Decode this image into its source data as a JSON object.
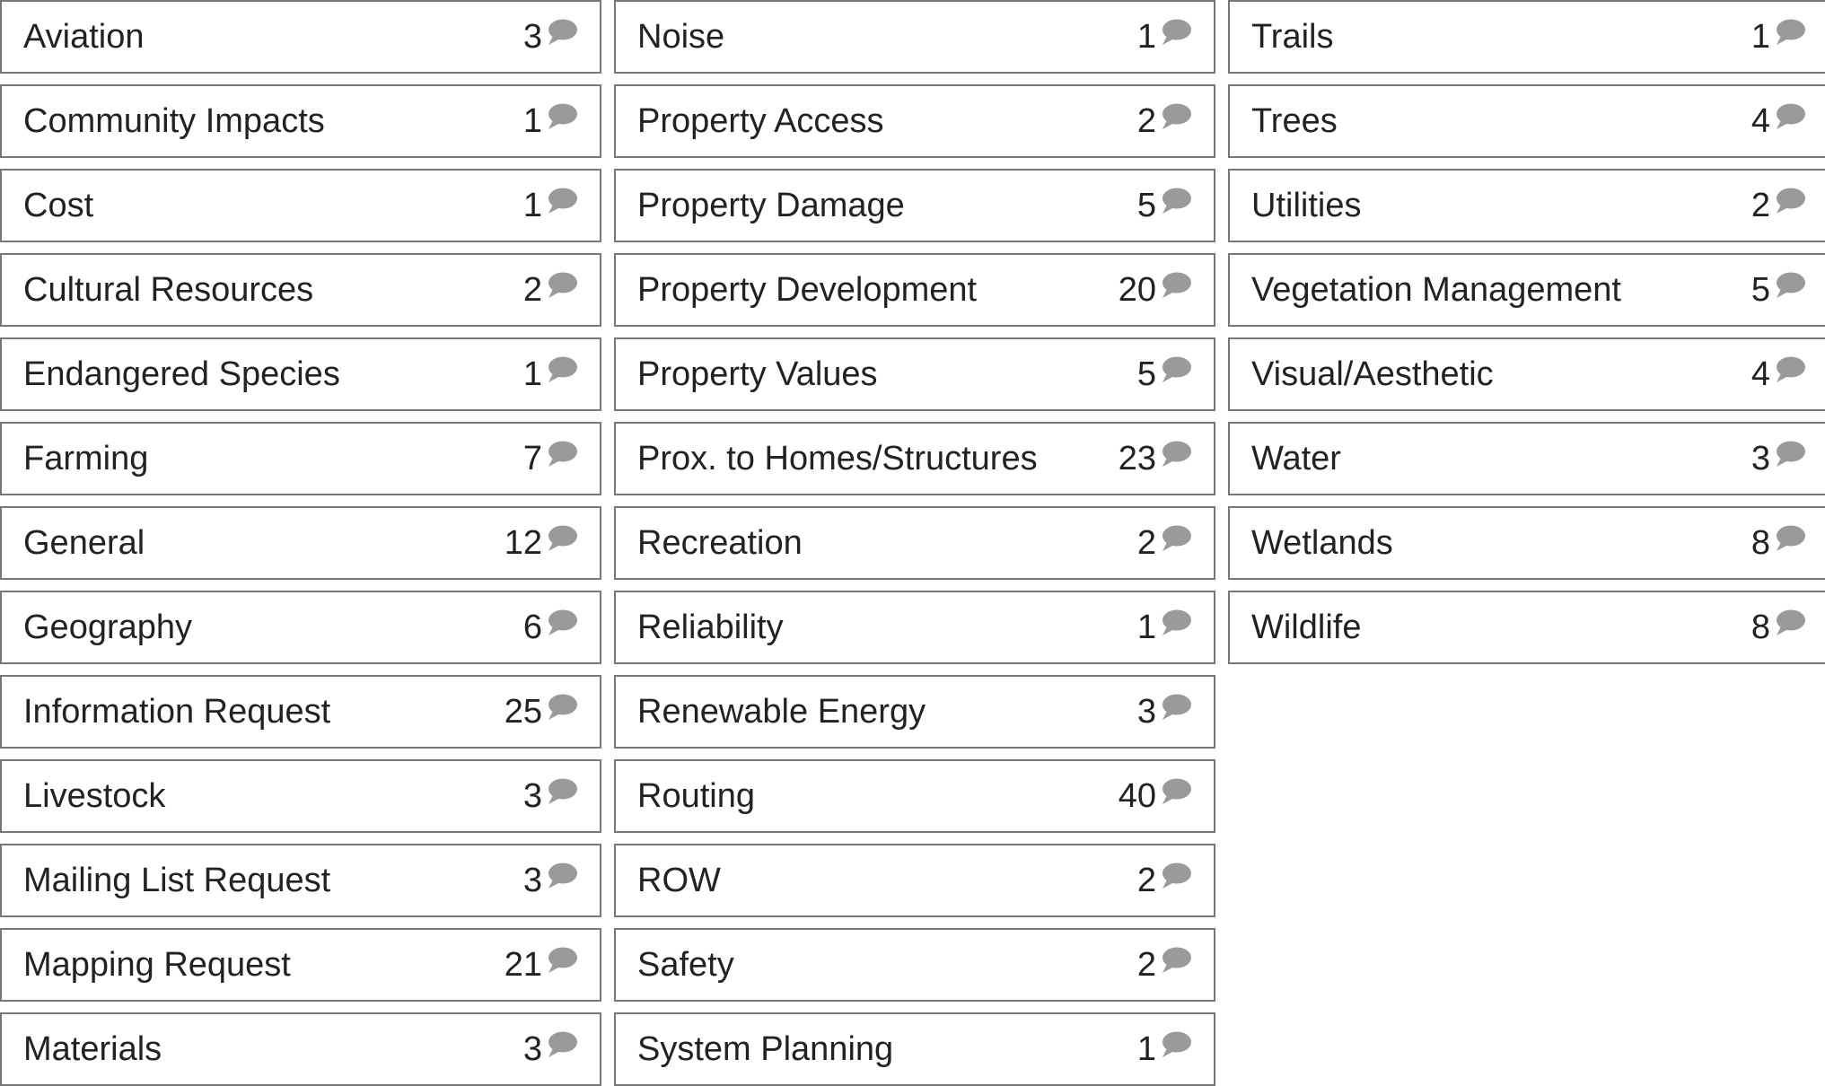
{
  "colors": {
    "border": "#777777",
    "text": "#222222",
    "icon": "#9a9a9a",
    "background": "#ffffff"
  },
  "icon": "comment-bubble-icon",
  "columns": [
    {
      "items": [
        {
          "label": "Aviation",
          "count": "3"
        },
        {
          "label": "Community Impacts",
          "count": "1"
        },
        {
          "label": "Cost",
          "count": "1"
        },
        {
          "label": "Cultural Resources",
          "count": "2"
        },
        {
          "label": "Endangered Species",
          "count": "1"
        },
        {
          "label": "Farming",
          "count": "7"
        },
        {
          "label": "General",
          "count": "12"
        },
        {
          "label": "Geography",
          "count": "6"
        },
        {
          "label": "Information Request",
          "count": "25"
        },
        {
          "label": "Livestock",
          "count": "3"
        },
        {
          "label": "Mailing List Request",
          "count": "3"
        },
        {
          "label": "Mapping Request",
          "count": "21"
        },
        {
          "label": "Materials",
          "count": "3"
        }
      ]
    },
    {
      "items": [
        {
          "label": "Noise",
          "count": "1"
        },
        {
          "label": "Property Access",
          "count": "2"
        },
        {
          "label": "Property Damage",
          "count": "5"
        },
        {
          "label": "Property Development",
          "count": "20"
        },
        {
          "label": "Property Values",
          "count": "5"
        },
        {
          "label": "Prox. to Homes/Structures",
          "count": "23"
        },
        {
          "label": "Recreation",
          "count": "2"
        },
        {
          "label": "Reliability",
          "count": "1"
        },
        {
          "label": "Renewable Energy",
          "count": "3"
        },
        {
          "label": "Routing",
          "count": "40"
        },
        {
          "label": "ROW",
          "count": "2"
        },
        {
          "label": "Safety",
          "count": "2"
        },
        {
          "label": "System Planning",
          "count": "1"
        }
      ]
    },
    {
      "items": [
        {
          "label": "Trails",
          "count": "1"
        },
        {
          "label": "Trees",
          "count": "4"
        },
        {
          "label": "Utilities",
          "count": "2"
        },
        {
          "label": "Vegetation Management",
          "count": "5"
        },
        {
          "label": "Visual/Aesthetic",
          "count": "4"
        },
        {
          "label": "Water",
          "count": "3"
        },
        {
          "label": "Wetlands",
          "count": "8"
        },
        {
          "label": "Wildlife",
          "count": "8"
        }
      ]
    }
  ]
}
